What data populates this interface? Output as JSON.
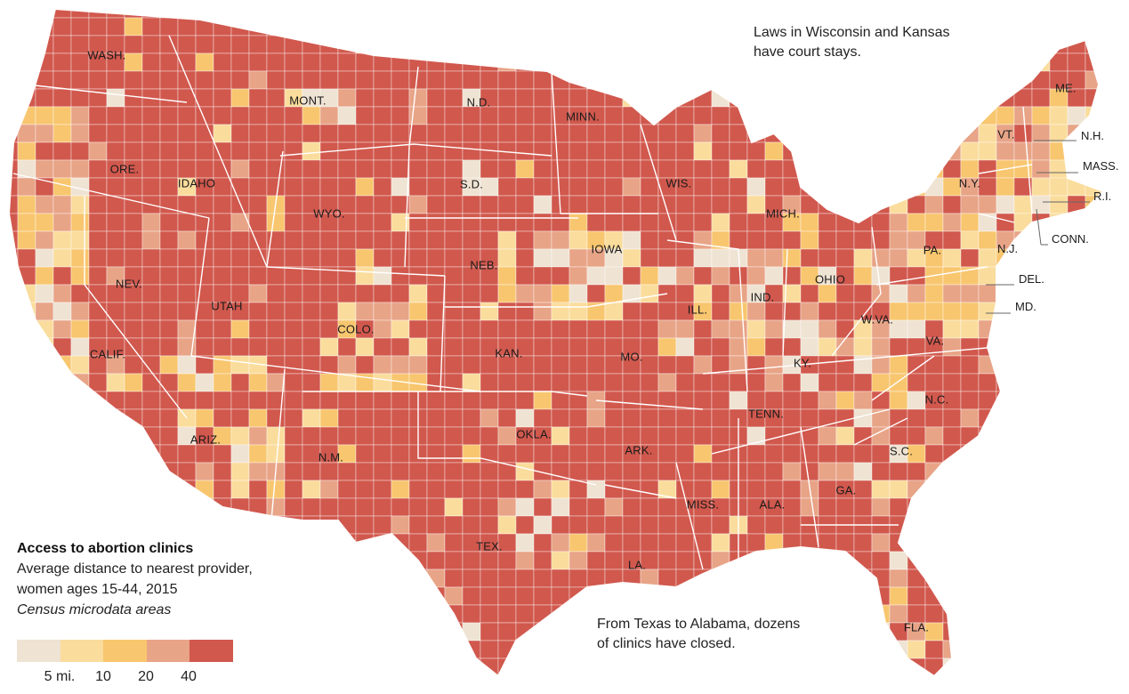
{
  "annotations": {
    "top_right": [
      "Laws in Wisconsin and Kansas",
      "have court stays."
    ],
    "bottom": [
      "From Texas to Alabama, dozens",
      "of clinics have closed."
    ]
  },
  "legend": {
    "title": "Access to abortion clinics",
    "subtitle": "Average distance to nearest provider, women ages 15-44, 2015",
    "subtitle_italic": "Census microdata areas",
    "bins": [
      {
        "color": "#efe3d3"
      },
      {
        "color": "#fadc9c"
      },
      {
        "color": "#f8c66f"
      },
      {
        "color": "#e8a487"
      },
      {
        "color": "#d1584d"
      }
    ],
    "ticks": [
      "5 mi.",
      "10",
      "20",
      "40"
    ]
  },
  "colors": {
    "border": "#ffffff",
    "state_border": "#ffffff",
    "leader_line": "#666666",
    "text": "#1a1a1a"
  },
  "states": [
    {
      "id": "wash",
      "label": "WASH."
    },
    {
      "id": "ore",
      "label": "ORE."
    },
    {
      "id": "idaho",
      "label": "IDAHO"
    },
    {
      "id": "mont",
      "label": "MONT."
    },
    {
      "id": "nd",
      "label": "N.D."
    },
    {
      "id": "sd",
      "label": "S.D."
    },
    {
      "id": "minn",
      "label": "MINN."
    },
    {
      "id": "wyo",
      "label": "WYO."
    },
    {
      "id": "nev",
      "label": "NEV."
    },
    {
      "id": "utah",
      "label": "UTAH"
    },
    {
      "id": "colo",
      "label": "COLO."
    },
    {
      "id": "calif",
      "label": "CALIF."
    },
    {
      "id": "ariz",
      "label": "ARIZ."
    },
    {
      "id": "nm",
      "label": "N.M."
    },
    {
      "id": "neb",
      "label": "NEB."
    },
    {
      "id": "kan",
      "label": "KAN."
    },
    {
      "id": "okla",
      "label": "OKLA."
    },
    {
      "id": "tex",
      "label": "TEX."
    },
    {
      "id": "iowa",
      "label": "IOWA"
    },
    {
      "id": "mo",
      "label": "MO."
    },
    {
      "id": "ark",
      "label": "ARK."
    },
    {
      "id": "la",
      "label": "LA."
    },
    {
      "id": "wis",
      "label": "WIS."
    },
    {
      "id": "ill",
      "label": "ILL."
    },
    {
      "id": "mich",
      "label": "MICH."
    },
    {
      "id": "ind",
      "label": "IND."
    },
    {
      "id": "ohio",
      "label": "OHIO"
    },
    {
      "id": "ky",
      "label": "KY."
    },
    {
      "id": "tenn",
      "label": "TENN."
    },
    {
      "id": "miss",
      "label": "MISS."
    },
    {
      "id": "ala",
      "label": "ALA."
    },
    {
      "id": "ga",
      "label": "GA."
    },
    {
      "id": "fla",
      "label": "FLA."
    },
    {
      "id": "sc",
      "label": "S.C."
    },
    {
      "id": "nc",
      "label": "N.C."
    },
    {
      "id": "va",
      "label": "VA."
    },
    {
      "id": "wva",
      "label": "W.VA."
    },
    {
      "id": "pa",
      "label": "PA."
    },
    {
      "id": "ny",
      "label": "N.Y."
    },
    {
      "id": "vt",
      "label": "VT."
    },
    {
      "id": "me",
      "label": "ME."
    }
  ],
  "callouts": [
    {
      "id": "nh",
      "label": "N.H."
    },
    {
      "id": "mass",
      "label": "MASS."
    },
    {
      "id": "ri",
      "label": "R.I."
    },
    {
      "id": "conn",
      "label": "CONN."
    },
    {
      "id": "nj",
      "label": "N.J."
    },
    {
      "id": "del",
      "label": "DEL."
    },
    {
      "id": "md",
      "label": "MD."
    }
  ]
}
